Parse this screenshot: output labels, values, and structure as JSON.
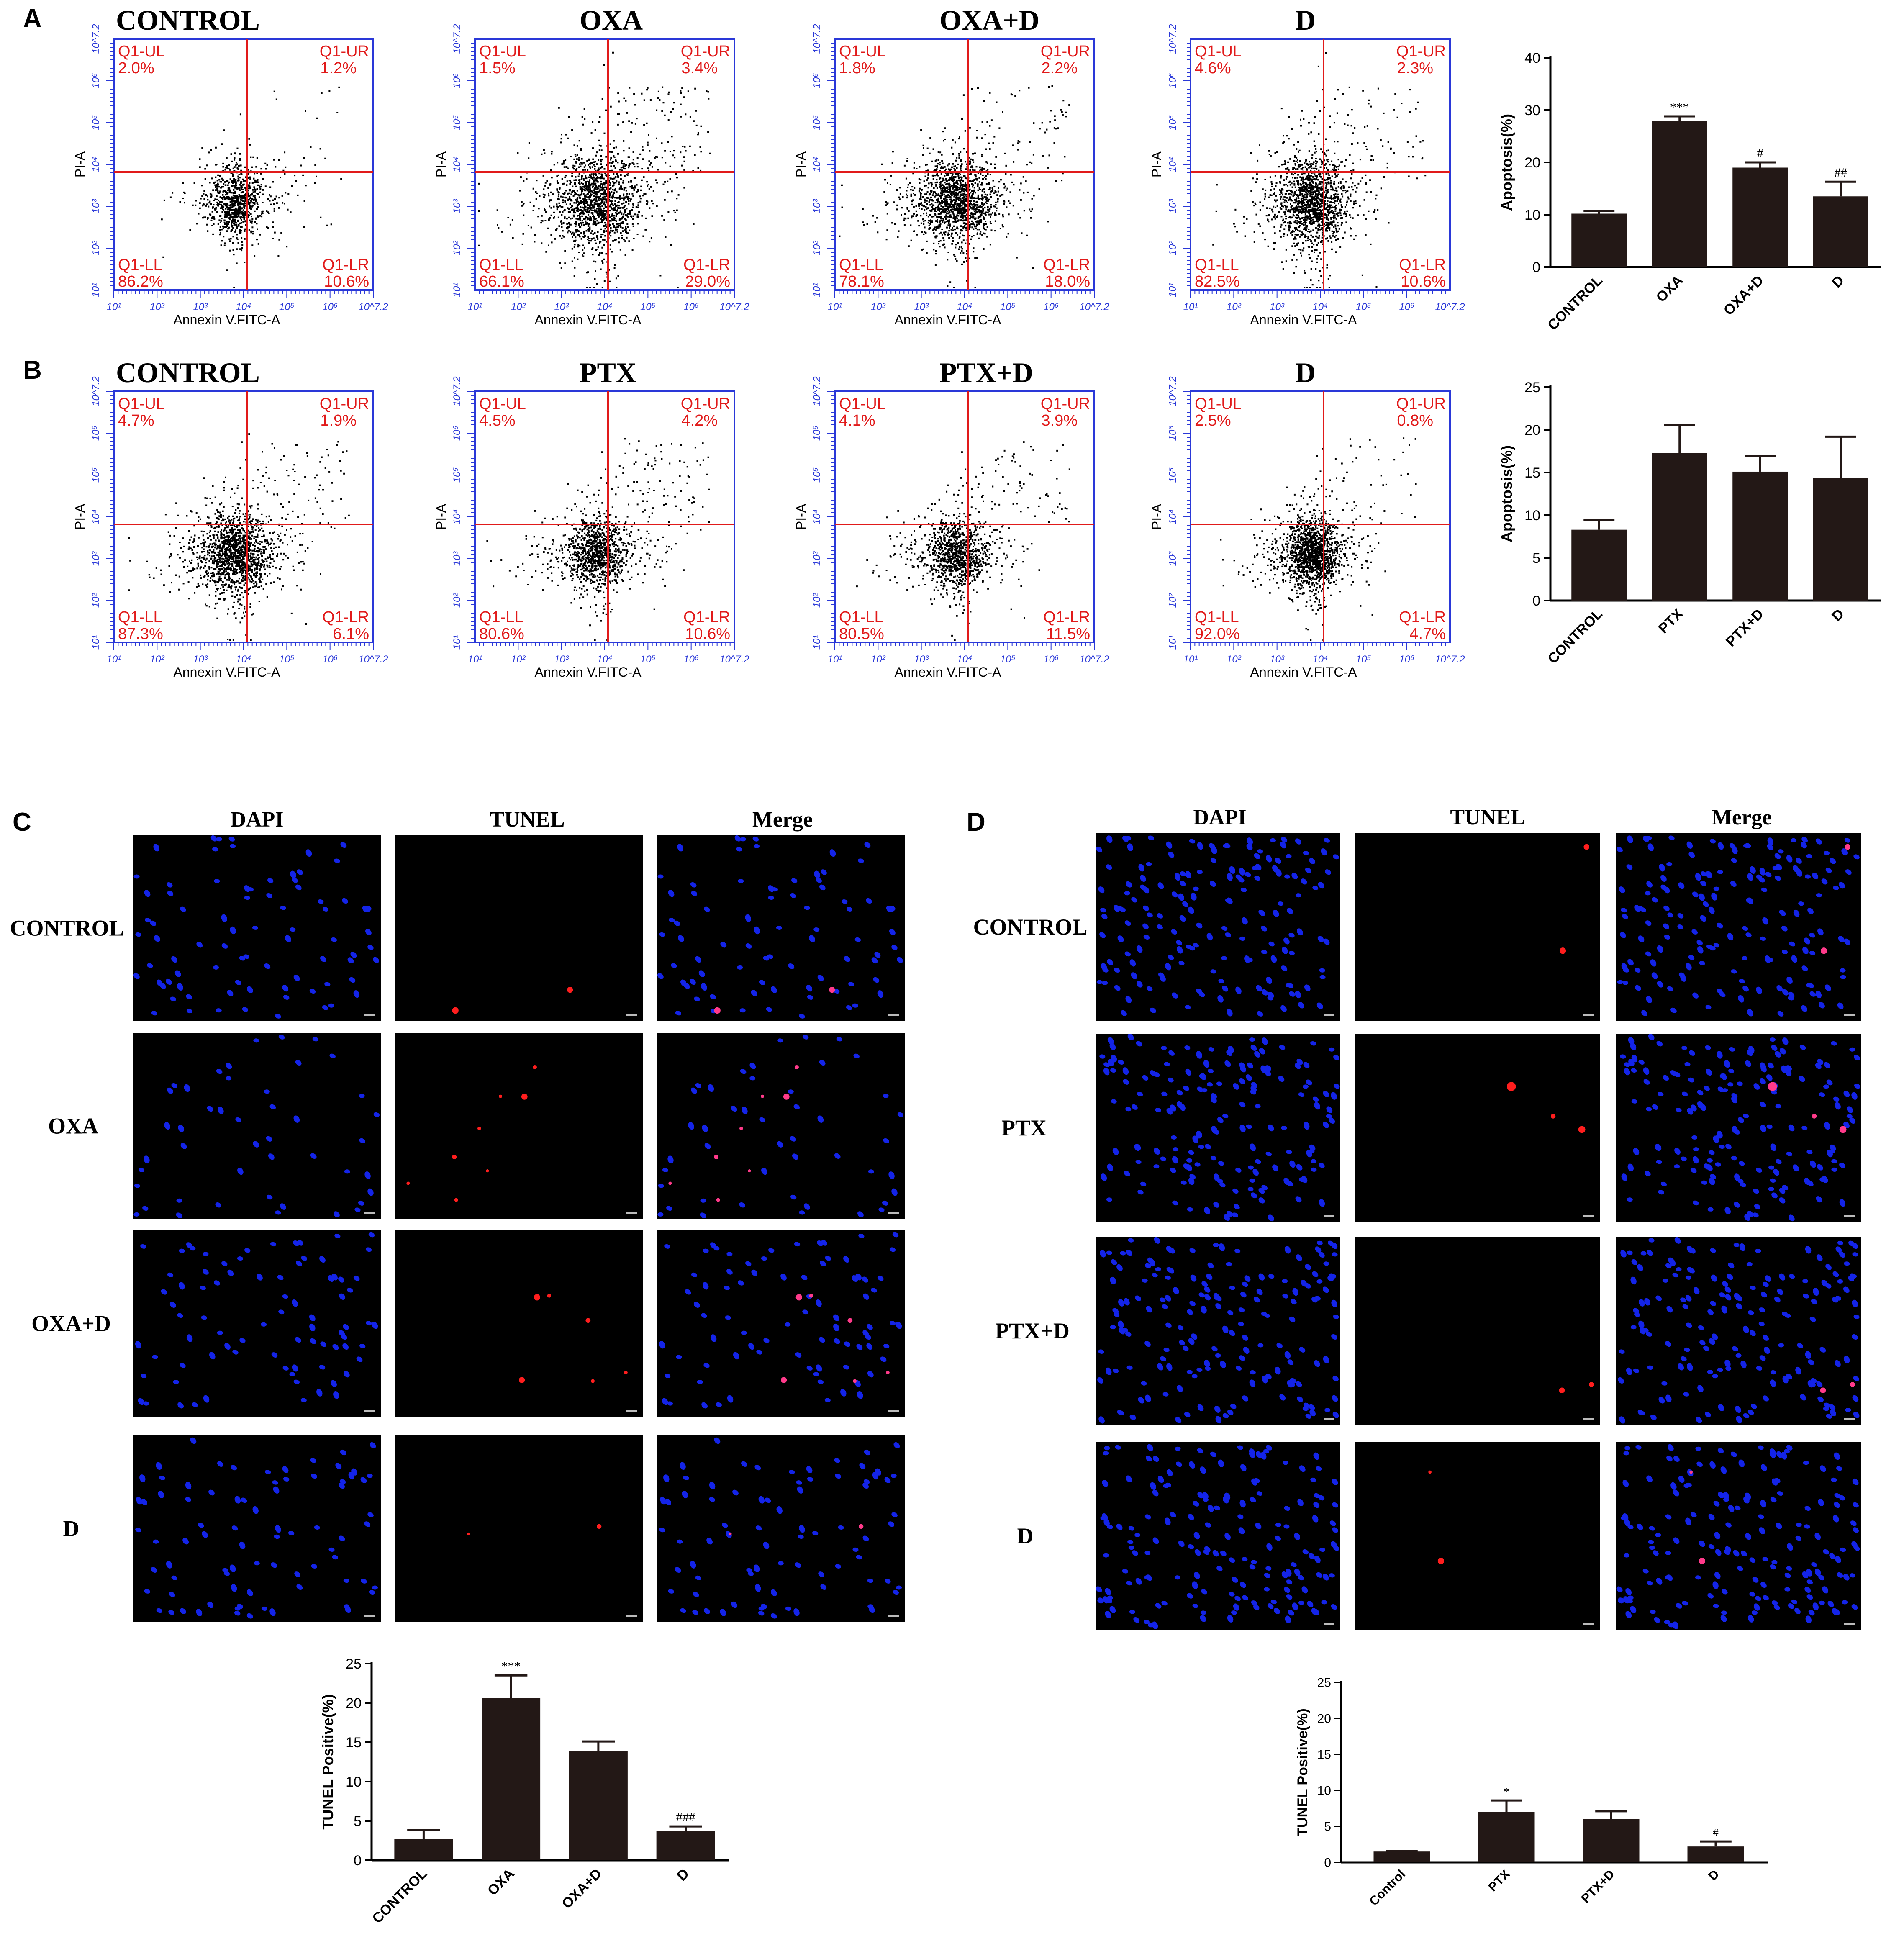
{
  "panel_letters": [
    "A",
    "B",
    "C",
    "D"
  ],
  "flow": {
    "xlabel": "Annexin V.FITC-A",
    "ylabel": "PI-A",
    "x_ticks": [
      "10¹",
      "10²",
      "10³",
      "10⁴",
      "10⁵",
      "10⁶",
      "10^7.2"
    ],
    "y_ticks": [
      "10¹",
      "10²",
      "10³",
      "10⁴",
      "10⁵",
      "10⁶",
      "10^7.2"
    ],
    "quadrant_labels": {
      "ul": "Q1-UL",
      "ur": "Q1-UR",
      "ll": "Q1-LL",
      "lr": "Q1-LR"
    },
    "rows": [
      {
        "panel": "A",
        "plots": [
          {
            "title": "CONTROL",
            "ul": "2.0%",
            "ur": "1.2%",
            "ll": "86.2%",
            "lr": "10.6%"
          },
          {
            "title": "OXA",
            "ul": "1.5%",
            "ur": "3.4%",
            "ll": "66.1%",
            "lr": "29.0%"
          },
          {
            "title": "OXA+D",
            "ul": "1.8%",
            "ur": "2.2%",
            "ll": "78.1%",
            "lr": "18.0%"
          },
          {
            "title": "D",
            "ul": "4.6%",
            "ur": "2.3%",
            "ll": "82.5%",
            "lr": "10.6%"
          }
        ]
      },
      {
        "panel": "B",
        "plots": [
          {
            "title": "CONTROL",
            "ul": "4.7%",
            "ur": "1.9%",
            "ll": "87.3%",
            "lr": "6.1%"
          },
          {
            "title": "PTX",
            "ul": "4.5%",
            "ur": "4.2%",
            "ll": "80.6%",
            "lr": "10.6%"
          },
          {
            "title": "PTX+D",
            "ul": "4.1%",
            "ur": "3.9%",
            "ll": "80.5%",
            "lr": "11.5%"
          },
          {
            "title": "D",
            "ul": "2.5%",
            "ur": "0.8%",
            "ll": "92.0%",
            "lr": "4.7%"
          }
        ]
      }
    ]
  },
  "micrographs": {
    "C": {
      "columns": [
        "DAPI",
        "TUNEL",
        "Merge"
      ],
      "rows": [
        "CONTROL",
        "OXA",
        "OXA+D",
        "D"
      ],
      "tunel_positive_fraction": [
        0.03,
        0.21,
        0.14,
        0.04
      ]
    },
    "D": {
      "columns": [
        "DAPI",
        "TUNEL",
        "Merge"
      ],
      "rows": [
        "CONTROL",
        "PTX",
        "PTX+D",
        "D"
      ],
      "tunel_positive_fraction": [
        0.02,
        0.07,
        0.06,
        0.02
      ]
    }
  },
  "chart_data": [
    {
      "id": "A-bar",
      "type": "bar",
      "categories": [
        "CONTROL",
        "OXA",
        "OXA+D",
        "D"
      ],
      "values": [
        10.2,
        28.0,
        19.0,
        13.5
      ],
      "errors": [
        0.5,
        0.8,
        1.0,
        2.8
      ],
      "annotations": [
        "",
        "***",
        "#",
        "##"
      ],
      "xlabel": "",
      "ylabel": "Apoptosis(%)",
      "ylim": [
        0,
        40
      ],
      "yticks": [
        0,
        10,
        20,
        30,
        40
      ]
    },
    {
      "id": "B-bar",
      "type": "bar",
      "categories": [
        "CONTROL",
        "PTX",
        "PTX+D",
        "D"
      ],
      "values": [
        8.3,
        17.3,
        15.1,
        14.4
      ],
      "errors": [
        1.1,
        3.3,
        1.8,
        4.8
      ],
      "annotations": [
        "",
        "",
        "",
        ""
      ],
      "xlabel": "",
      "ylabel": "Apoptosis(%)",
      "ylim": [
        0,
        25
      ],
      "yticks": [
        0,
        5,
        10,
        15,
        20,
        25
      ]
    },
    {
      "id": "C-bar",
      "type": "bar",
      "categories": [
        "CONTROL",
        "OXA",
        "OXA+D",
        "D"
      ],
      "values": [
        2.7,
        20.6,
        13.9,
        3.7
      ],
      "errors": [
        1.1,
        2.9,
        1.2,
        0.6
      ],
      "annotations": [
        "",
        "***",
        "",
        "###"
      ],
      "xlabel": "",
      "ylabel": "TUNEL Positive(%)",
      "ylim": [
        0,
        25
      ],
      "yticks": [
        0,
        5,
        10,
        15,
        20,
        25
      ]
    },
    {
      "id": "D-bar",
      "type": "bar",
      "categories": [
        "Control",
        "PTX",
        "PTX+D",
        "D"
      ],
      "values": [
        1.5,
        7.0,
        6.0,
        2.2
      ],
      "errors": [
        0.1,
        1.6,
        1.1,
        0.7
      ],
      "annotations": [
        "",
        "*",
        "",
        "#"
      ],
      "xlabel": "",
      "ylabel": "TUNEL Positive(%)",
      "ylim": [
        0,
        25
      ],
      "yticks": [
        0,
        5,
        10,
        15,
        20,
        25
      ]
    }
  ]
}
